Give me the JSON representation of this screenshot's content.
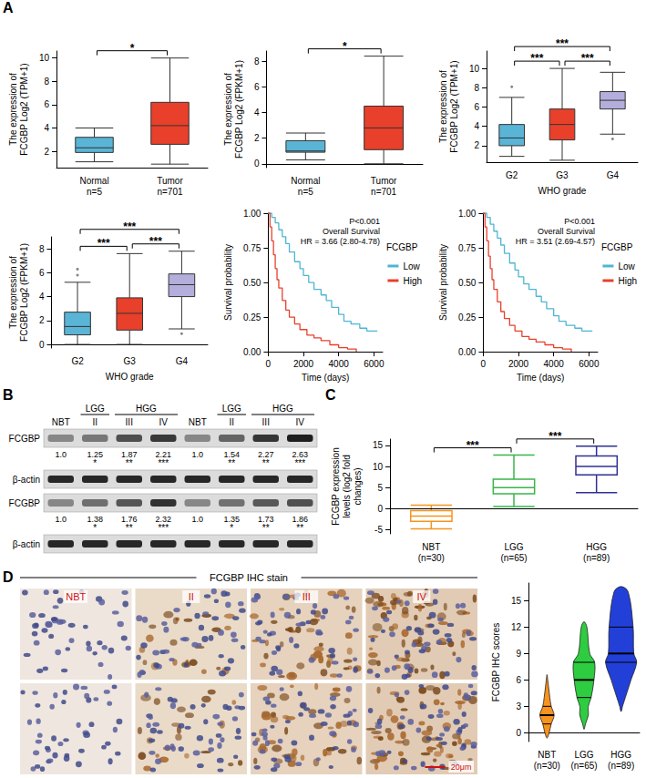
{
  "panel_letters": [
    "A",
    "B",
    "C",
    "D"
  ],
  "chart_data": [
    {
      "type": "boxplot",
      "ylabel": "The expression of FCGBP Log2 (TPM+1)",
      "categories": [
        "Normal",
        "Tumor"
      ],
      "n_labels": [
        "n=5",
        "n=701"
      ],
      "values": [
        [
          1.1,
          1.9,
          2.3,
          3.2,
          4.0
        ],
        [
          0.9,
          2.6,
          4.2,
          6.2,
          10.0
        ]
      ],
      "colors": [
        "#5ab4d6",
        "#e8402b"
      ],
      "ylim": [
        0.6,
        10.6
      ],
      "yticks": [
        2,
        4,
        6,
        8,
        10
      ],
      "comparisons": [
        {
          "groups": [
            0,
            1
          ],
          "label": "*"
        }
      ]
    },
    {
      "type": "boxplot",
      "ylabel": "The expression of FCGBP Log2 (FPKM+1)",
      "categories": [
        "Normal",
        "Tumor"
      ],
      "n_labels": [
        "n=5",
        "n=701"
      ],
      "values": [
        [
          0.3,
          0.9,
          1.0,
          1.8,
          2.4
        ],
        [
          0.0,
          1.1,
          2.8,
          4.5,
          8.4
        ]
      ],
      "colors": [
        "#5ab4d6",
        "#e8402b"
      ],
      "ylim": [
        -0.3,
        8.8
      ],
      "yticks": [
        0,
        2,
        4,
        6,
        8
      ],
      "comparisons": [
        {
          "groups": [
            0,
            1
          ],
          "label": "*"
        }
      ]
    },
    {
      "type": "boxplot",
      "ylabel": "The expression of FCGBP Log2 (TPM+1)",
      "xlabel": "WHO grade",
      "categories": [
        "G2",
        "G3",
        "G4"
      ],
      "values": [
        [
          0.9,
          2.0,
          2.8,
          4.2,
          7.0
        ],
        [
          0.5,
          2.6,
          4.2,
          5.8,
          10.0
        ],
        [
          3.2,
          5.8,
          6.7,
          7.6,
          9.6
        ]
      ],
      "outliers": [
        [
          0,
          8.1
        ],
        [
          2,
          2.7
        ]
      ],
      "colors": [
        "#5ab4d6",
        "#e8402b",
        "#b3aedb"
      ],
      "ylim": [
        0.3,
        11.8
      ],
      "yticks": [
        2,
        4,
        6,
        8,
        10
      ],
      "comparisons": [
        {
          "groups": [
            0,
            1
          ],
          "label": "***"
        },
        {
          "groups": [
            0,
            2
          ],
          "label": "***"
        },
        {
          "groups": [
            1,
            2
          ],
          "label": "***"
        }
      ]
    },
    {
      "type": "boxplot",
      "ylabel": "The expression of FCGBP Log2 (FPKM+1)",
      "xlabel": "WHO grade",
      "categories": [
        "G2",
        "G3",
        "G4"
      ],
      "values": [
        [
          0.0,
          0.8,
          1.5,
          2.7,
          5.2
        ],
        [
          0.0,
          1.2,
          2.6,
          3.9,
          7.6
        ],
        [
          1.3,
          4.0,
          5.0,
          5.9,
          7.8
        ]
      ],
      "outliers": [
        [
          0,
          6.3
        ],
        [
          0,
          5.8
        ],
        [
          2,
          0.9
        ]
      ],
      "colors": [
        "#5ab4d6",
        "#e8402b",
        "#b3aedb"
      ],
      "ylim": [
        -0.3,
        9.0
      ],
      "yticks": [
        0,
        2,
        4,
        6,
        8
      ],
      "comparisons": [
        {
          "groups": [
            0,
            1
          ],
          "label": "***"
        },
        {
          "groups": [
            0,
            2
          ],
          "label": "***"
        },
        {
          "groups": [
            1,
            2
          ],
          "label": "***"
        }
      ]
    },
    {
      "type": "line",
      "ylabel": "Survival probability",
      "xlabel": "Time (days)",
      "legend_title": "FCGBP",
      "legend": "right",
      "annotations": [
        "P<0.001",
        "Overall Survival",
        "HR = 3.66 (2.80-4.78)"
      ],
      "xlim": [
        0,
        6500
      ],
      "xticks": [
        0,
        2000,
        4000,
        6000
      ],
      "ylim": [
        0,
        1
      ],
      "yticks": [
        {
          "value": 0,
          "label": "0.00"
        },
        0.25,
        {
          "value": 0.5,
          "label": "0.50"
        },
        0.75,
        {
          "value": 1,
          "label": "1.00"
        }
      ],
      "series": [
        {
          "name": "Low",
          "color": "#4db6d3",
          "line_style": "step",
          "x": [
            0,
            200,
            400,
            600,
            800,
            1000,
            1200,
            1500,
            1800,
            2000,
            2300,
            2600,
            3000,
            3300,
            3600,
            4000,
            4300,
            4700,
            5200,
            5600,
            6200
          ],
          "values": [
            1.0,
            0.97,
            0.93,
            0.88,
            0.83,
            0.78,
            0.72,
            0.65,
            0.6,
            0.55,
            0.5,
            0.45,
            0.41,
            0.37,
            0.32,
            0.27,
            0.22,
            0.2,
            0.17,
            0.15,
            0.15
          ]
        },
        {
          "name": "High",
          "color": "#e8402b",
          "line_style": "step",
          "x": [
            0,
            100,
            200,
            300,
            400,
            500,
            600,
            800,
            1000,
            1200,
            1500,
            1800,
            2200,
            2600,
            3000,
            3500,
            4000,
            4500,
            5000
          ],
          "values": [
            1.0,
            0.9,
            0.8,
            0.7,
            0.6,
            0.52,
            0.46,
            0.37,
            0.3,
            0.25,
            0.2,
            0.16,
            0.12,
            0.1,
            0.08,
            0.05,
            0.03,
            0.02,
            0.0
          ]
        }
      ]
    },
    {
      "type": "line",
      "ylabel": "Survival probability",
      "xlabel": "Time (days)",
      "legend_title": "FCGBP",
      "legend": "right",
      "annotations": [
        "P<0.001",
        "Overall Survival",
        "HR = 3.51 (2.69-4.57)"
      ],
      "xlim": [
        0,
        6500
      ],
      "xticks": [
        0,
        2000,
        4000,
        6000
      ],
      "ylim": [
        0,
        1
      ],
      "yticks": [
        {
          "value": 0,
          "label": "0.00"
        },
        0.25,
        {
          "value": 0.5,
          "label": "0.50"
        },
        0.75,
        {
          "value": 1,
          "label": "1.00"
        }
      ],
      "series": [
        {
          "name": "Low",
          "color": "#4db6d3",
          "line_style": "step",
          "x": [
            0,
            200,
            400,
            600,
            800,
            1000,
            1200,
            1500,
            1800,
            2000,
            2300,
            2600,
            3000,
            3300,
            3600,
            4000,
            4300,
            4700,
            5200,
            5600,
            6200
          ],
          "values": [
            1.0,
            0.97,
            0.92,
            0.87,
            0.82,
            0.77,
            0.71,
            0.64,
            0.59,
            0.54,
            0.49,
            0.45,
            0.4,
            0.36,
            0.31,
            0.26,
            0.22,
            0.19,
            0.17,
            0.15,
            0.15
          ]
        },
        {
          "name": "High",
          "color": "#e8402b",
          "line_style": "step",
          "x": [
            0,
            100,
            200,
            300,
            400,
            500,
            600,
            800,
            1000,
            1200,
            1500,
            1800,
            2200,
            2600,
            3000,
            3500,
            4000,
            4500,
            5000
          ],
          "values": [
            1.0,
            0.9,
            0.8,
            0.69,
            0.6,
            0.52,
            0.45,
            0.36,
            0.29,
            0.24,
            0.19,
            0.15,
            0.11,
            0.09,
            0.07,
            0.05,
            0.03,
            0.02,
            0.0
          ]
        }
      ]
    },
    {
      "type": "boxplot",
      "ylabel": "FCGBP expression levels (log2 fold changes)",
      "categories": [
        "NBT",
        "LGG",
        "HGG"
      ],
      "n_labels": [
        "(n=30)",
        "(n=65)",
        "(n=89)"
      ],
      "values": [
        [
          -4.8,
          -3.0,
          -1.8,
          -0.5,
          0.8
        ],
        [
          0.5,
          3.5,
          5.0,
          7.0,
          12.7
        ],
        [
          3.8,
          8.0,
          10.0,
          12.5,
          14.8
        ]
      ],
      "colors": [
        "#f7931e",
        "#39b54a",
        "#2e3192"
      ],
      "ylim": [
        -6,
        16.5
      ],
      "yticks": [
        -5,
        0,
        5,
        10,
        15
      ],
      "reference_line": 0,
      "comparisons": [
        {
          "groups": [
            0,
            1
          ],
          "label": "***"
        },
        {
          "groups": [
            1,
            2
          ],
          "label": "***"
        }
      ]
    },
    {
      "type": "violin",
      "ylabel": "FCGBP IHC scores",
      "categories": [
        "NBT",
        "LGG",
        "HGG"
      ],
      "n_labels": [
        "(n=30)",
        "(n=65)",
        "(n=89)"
      ],
      "scores": [
        0,
        1,
        2,
        3,
        4,
        6,
        8,
        9,
        12,
        16
      ],
      "counts": [
        [
          3,
          6,
          10,
          6,
          4,
          1,
          0,
          0,
          0,
          0
        ],
        [
          0,
          2,
          6,
          6,
          10,
          14,
          15,
          8,
          4,
          0
        ],
        [
          0,
          0,
          0,
          2,
          6,
          14,
          22,
          18,
          17,
          10
        ]
      ],
      "colors": [
        "#f7931e",
        "#2ecc40",
        "#2240d8"
      ],
      "ylim": [
        -1,
        17
      ],
      "yticks": [
        0,
        3,
        6,
        9,
        12,
        15
      ]
    }
  ],
  "western_blot": {
    "lanes": [
      "NBT",
      "II",
      "III",
      "IV",
      "NBT",
      "II",
      "III",
      "IV"
    ],
    "groups": [
      {
        "label": "LGG",
        "lanes": [
          1
        ]
      },
      {
        "label": "HGG",
        "lanes": [
          2,
          3
        ]
      },
      {
        "label": "LGG",
        "lanes": [
          5
        ]
      },
      {
        "label": "HGG",
        "lanes": [
          6,
          7
        ]
      }
    ],
    "blots": [
      {
        "protein": "FCGBP",
        "values": [
          1.0,
          1.25,
          1.87,
          2.21,
          1.0,
          1.54,
          2.27,
          2.63
        ],
        "value_labels": [
          "1.0",
          "1.25",
          "1.87",
          "2.21",
          "1.0",
          "1.54",
          "2.27",
          "2.63"
        ],
        "significance": [
          null,
          "*",
          "**",
          "***",
          null,
          "**",
          "**",
          "***"
        ]
      },
      {
        "protein": "β-actin"
      },
      {
        "protein": "FCGBP",
        "values": [
          1.0,
          1.38,
          1.76,
          2.32,
          1.0,
          1.35,
          1.73,
          1.86
        ],
        "value_labels": [
          "1.0",
          "1.38",
          "1.76",
          "2.32",
          "1.0",
          "1.35",
          "1.73",
          "1.86"
        ],
        "significance": [
          null,
          "*",
          "**",
          "***",
          null,
          "*",
          "**",
          "**"
        ]
      },
      {
        "protein": "β-actin"
      }
    ]
  },
  "ihc": {
    "title": "FCGBP IHC stain",
    "columns": [
      "NBT",
      "II",
      "III",
      "IV"
    ],
    "scale_bar": "20μm"
  }
}
